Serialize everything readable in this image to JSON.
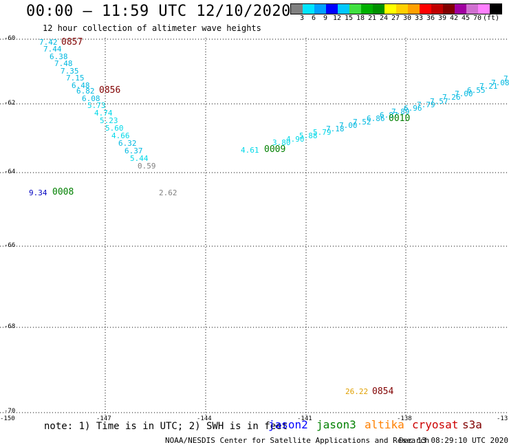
{
  "header": {
    "title": "00:00 – 11:59 UTC 12/10/2020",
    "subtitle": "12 hour collection of altimeter wave heights"
  },
  "legend": {
    "colors": [
      "#808080",
      "#00e5ff",
      "#00a0ff",
      "#0000ff",
      "#00c8ff",
      "#40e040",
      "#00b000",
      "#009000",
      "#ffff00",
      "#ffd000",
      "#ffa000",
      "#ff0000",
      "#c00000",
      "#800000",
      "#a000a0",
      "#d070d0",
      "#ff80ff",
      "#000000"
    ],
    "labels": [
      "3",
      "6",
      "9",
      "12",
      "15",
      "18",
      "21",
      "24",
      "27",
      "30",
      "33",
      "36",
      "39",
      "42",
      "45",
      "70",
      "(ft)"
    ]
  },
  "axes": {
    "lat_labels": [
      "-60",
      "-62",
      "-64",
      "-66",
      "-68",
      "-70"
    ],
    "lon_labels": [
      "-150",
      "-147",
      "-144",
      "-141",
      "-138",
      "-13"
    ]
  },
  "swh_values": [
    {
      "text": "7.42",
      "color": "#00b8e0"
    },
    {
      "text": "7.44",
      "color": "#00b8e0"
    },
    {
      "text": "6.38",
      "color": "#00b8e0"
    },
    {
      "text": "7.48",
      "color": "#00b8e0"
    },
    {
      "text": "7.35",
      "color": "#00b8e0"
    },
    {
      "text": "7.15",
      "color": "#00b8e0"
    },
    {
      "text": "6.48",
      "color": "#00b8e0"
    },
    {
      "text": "6.82",
      "color": "#00b8e0"
    },
    {
      "text": "6.08",
      "color": "#00b8e0"
    },
    {
      "text": "5.73",
      "color": "#00d8e8"
    },
    {
      "text": "4.74",
      "color": "#00d8e8"
    },
    {
      "text": "5.23",
      "color": "#00d8e8"
    },
    {
      "text": "5.60",
      "color": "#00d8e8"
    },
    {
      "text": "4.66",
      "color": "#00d8e8"
    },
    {
      "text": "6.32",
      "color": "#00b8e0"
    },
    {
      "text": "6.37",
      "color": "#00b8e0"
    },
    {
      "text": "5.44",
      "color": "#00d8e8"
    },
    {
      "text": "0.59",
      "color": "#808080"
    },
    {
      "text": "9.34",
      "color": "#0000c0"
    },
    {
      "text": "2.62",
      "color": "#808080"
    },
    {
      "text": "4.61",
      "color": "#00d8e8"
    },
    {
      "text": "3.80",
      "color": "#00d8e8"
    },
    {
      "text": "4.90",
      "color": "#00d8e8"
    },
    {
      "text": "5.88",
      "color": "#00d8e8"
    },
    {
      "text": "5.79",
      "color": "#00d8e8"
    },
    {
      "text": "7.18",
      "color": "#00b8e0"
    },
    {
      "text": "7.00",
      "color": "#00b8e0"
    },
    {
      "text": "7.52",
      "color": "#00b8e0"
    },
    {
      "text": "6.86",
      "color": "#00b8e0"
    },
    {
      "text": "6.87",
      "color": "#00b8e0"
    },
    {
      "text": "7.89",
      "color": "#00b8e0"
    },
    {
      "text": "6.96",
      "color": "#00b8e0"
    },
    {
      "text": "7.79",
      "color": "#00b8e0"
    },
    {
      "text": "7.57",
      "color": "#00b8e0"
    },
    {
      "text": "7.26",
      "color": "#00b8e0"
    },
    {
      "text": "7.00",
      "color": "#00b8e0"
    },
    {
      "text": "6.55",
      "color": "#00b8e0"
    },
    {
      "text": "7.21",
      "color": "#00b8e0"
    },
    {
      "text": "7.08",
      "color": "#00b8e0"
    },
    {
      "text": "7",
      "color": "#00b8e0"
    },
    {
      "text": "26.22",
      "color": "#e0a000"
    }
  ],
  "time_labels": [
    {
      "text": "0857",
      "color": "#800000"
    },
    {
      "text": "0856",
      "color": "#800000"
    },
    {
      "text": "0008",
      "color": "#008000"
    },
    {
      "text": "0009",
      "color": "#008000"
    },
    {
      "text": "0010",
      "color": "#008000"
    },
    {
      "text": "0854",
      "color": "#800000"
    }
  ],
  "footer": {
    "note": "note: 1) Time is in UTC; 2) SWH is in feet",
    "satellites": [
      {
        "name": "jason2",
        "color": "#0000ff"
      },
      {
        "name": "jason3",
        "color": "#008000"
      },
      {
        "name": "altika",
        "color": "#ff8000"
      },
      {
        "name": "cryosat",
        "color": "#cc0000"
      },
      {
        "name": "s3a",
        "color": "#800000"
      }
    ],
    "credit": "NOAA/NESDIS Center for Satellite Applications and Research",
    "timestamp": "Dec 13 08:29:10 UTC 2020"
  }
}
